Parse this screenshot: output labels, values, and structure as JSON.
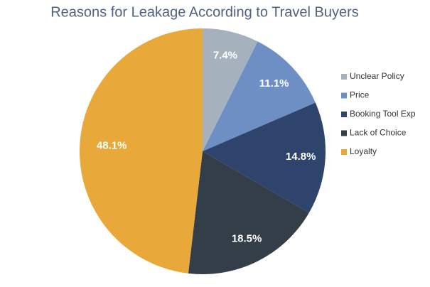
{
  "chart_data": {
    "type": "pie",
    "title": "Reasons for Leakage According to Travel Buyers",
    "categories": [
      "Unclear Policy",
      "Price",
      "Booking Tool Exp",
      "Lack of Choice",
      "Loyalty"
    ],
    "values": [
      7.4,
      11.1,
      14.8,
      18.5,
      48.1
    ],
    "value_labels": [
      "7.4%",
      "11.1%",
      "14.8%",
      "18.5%",
      "48.1%"
    ],
    "colors": [
      "#a6b1be",
      "#6e8fc4",
      "#2f446c",
      "#333e49",
      "#e8a93a"
    ],
    "legend": "right"
  }
}
